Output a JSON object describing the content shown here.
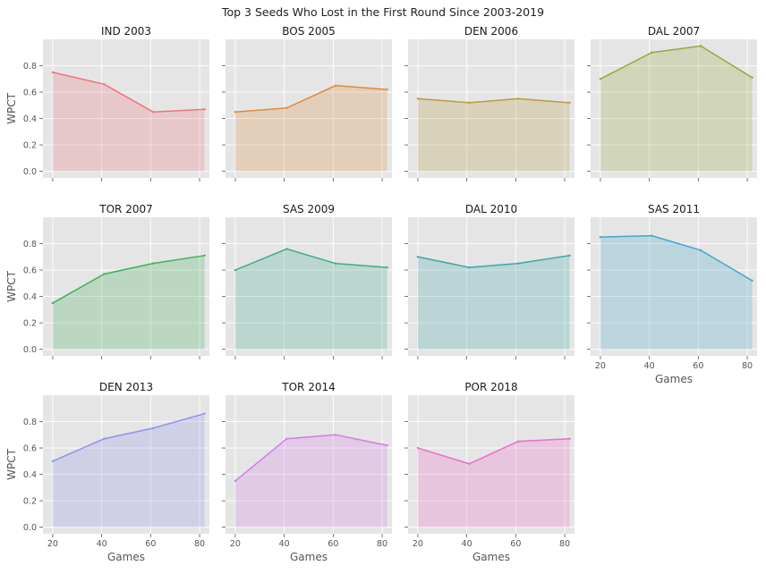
{
  "title": "Top 3 Seeds Who Lost in the First Round Since 2003-2019",
  "xlabel": "Games",
  "ylabel": "WPCT",
  "x_ticks": [
    20,
    40,
    60,
    80
  ],
  "y_ticks": [
    "0.0",
    "0.2",
    "0.4",
    "0.6",
    "0.8"
  ],
  "chart_data": {
    "type": "area",
    "layout": "small multiples, 3 rows x 4 columns, shared axes",
    "title": "Top 3 Seeds Who Lost in the First Round Since 2003-2019",
    "xlabel": "Games",
    "ylabel": "WPCT",
    "xlim": [
      16,
      84
    ],
    "ylim": [
      -0.05,
      1.0
    ],
    "grid": true,
    "x": [
      20,
      41,
      61,
      82
    ],
    "series": [
      {
        "name": "IND 2003",
        "values": [
          0.75,
          0.66,
          0.45,
          0.47
        ],
        "color": "#f0727a"
      },
      {
        "name": "BOS 2005",
        "values": [
          0.45,
          0.48,
          0.65,
          0.62
        ],
        "color": "#de8a3b"
      },
      {
        "name": "DEN 2006",
        "values": [
          0.55,
          0.52,
          0.55,
          0.52
        ],
        "color": "#b99b3f"
      },
      {
        "name": "DAL 2007",
        "values": [
          0.7,
          0.9,
          0.95,
          0.71
        ],
        "color": "#98a83a"
      },
      {
        "name": "TOR 2007",
        "values": [
          0.35,
          0.57,
          0.65,
          0.71
        ],
        "color": "#3fb05a"
      },
      {
        "name": "SAS 2009",
        "values": [
          0.6,
          0.76,
          0.65,
          0.62
        ],
        "color": "#3eab8b"
      },
      {
        "name": "DAL 2010",
        "values": [
          0.7,
          0.62,
          0.65,
          0.71
        ],
        "color": "#3aa8a8"
      },
      {
        "name": "SAS 2011",
        "values": [
          0.85,
          0.86,
          0.75,
          0.52
        ],
        "color": "#40a6cc"
      },
      {
        "name": "DEN 2013",
        "values": [
          0.5,
          0.67,
          0.75,
          0.86
        ],
        "color": "#8f92ea"
      },
      {
        "name": "TOR 2014",
        "values": [
          0.35,
          0.67,
          0.7,
          0.62
        ],
        "color": "#d57ae8"
      },
      {
        "name": "POR 2018",
        "values": [
          0.6,
          0.48,
          0.65,
          0.67
        ],
        "color": "#ee6cc6"
      }
    ]
  }
}
